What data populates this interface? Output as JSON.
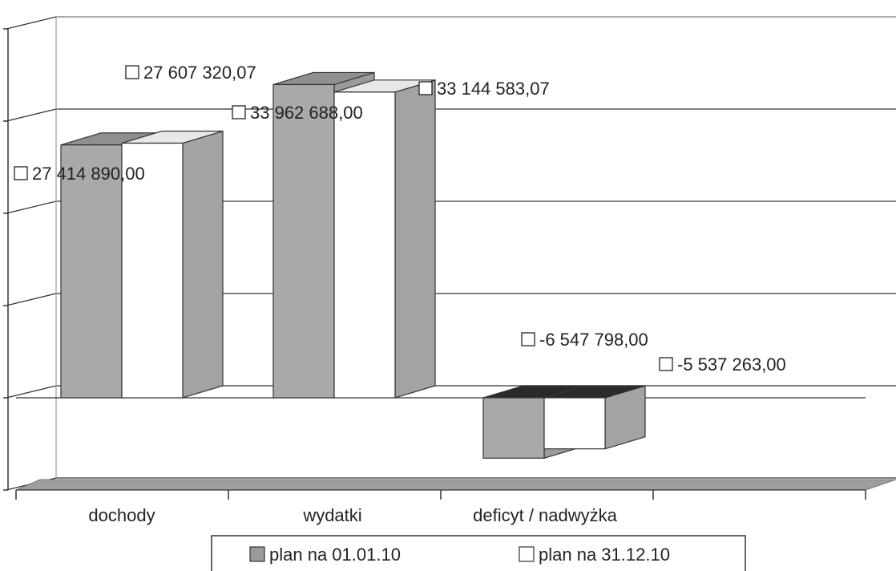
{
  "chart_data": {
    "type": "bar",
    "categories": [
      "dochody",
      "wydatki",
      "deficyt / nadwyżka"
    ],
    "series": [
      {
        "name": "plan na 01.01.10",
        "values": [
          27414890.0,
          33962688.0,
          -6547798.0
        ]
      },
      {
        "name": "plan na 31.12.10",
        "values": [
          27607320.07,
          33144583.07,
          -5537263.0
        ]
      }
    ],
    "data_labels": {
      "plan na 01.01.10": [
        "27 414 890,00",
        "33 962 688,00",
        "-6 547 798,00"
      ],
      "plan na 31.12.10": [
        "27 607 320,07",
        "33 144 583,07",
        "-5 537 263,00"
      ]
    },
    "title": "",
    "xlabel": "",
    "ylabel": "",
    "ylim": [
      -10000000,
      40000000
    ],
    "grid": true,
    "legend_position": "bottom",
    "style": "3d-clustered-column",
    "colors": {
      "plan na 01.01.10": "#a9a9a9",
      "plan na 31.12.10": "#ffffff"
    }
  }
}
